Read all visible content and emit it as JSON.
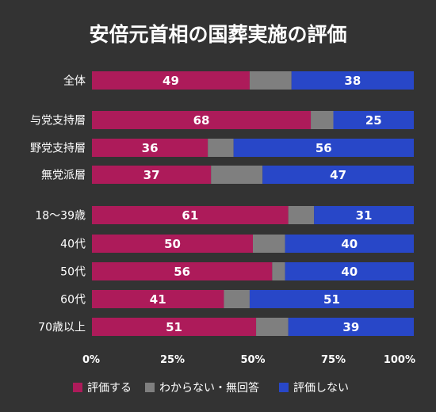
{
  "chart_data": {
    "type": "bar",
    "orientation": "horizontal",
    "stacked": true,
    "normalized_100": true,
    "title": "安倍元首相の国葬実施の評価",
    "categories": [
      "全体",
      "与党支持層",
      "野党支持層",
      "無党派層",
      "18〜39歳",
      "40代",
      "50代",
      "60代",
      "70歳以上"
    ],
    "groups": [
      [
        "全体"
      ],
      [
        "与党支持層",
        "野党支持層",
        "無党派層"
      ],
      [
        "18〜39歳",
        "40代",
        "50代",
        "60代",
        "70歳以上"
      ]
    ],
    "series": [
      {
        "name": "評価する",
        "color": "#ad1b5a",
        "values": [
          49,
          68,
          36,
          37,
          61,
          50,
          56,
          41,
          51
        ]
      },
      {
        "name": "わからない・無回答",
        "color": "#7f7f7f",
        "values": [
          13,
          7,
          8,
          16,
          8,
          10,
          4,
          8,
          10
        ]
      },
      {
        "name": "評価しない",
        "color": "#2847c8",
        "values": [
          38,
          25,
          56,
          47,
          31,
          40,
          40,
          51,
          39
        ]
      }
    ],
    "data_labels": [
      [
        "49",
        "38"
      ],
      [
        "68",
        "25"
      ],
      [
        "36",
        "56"
      ],
      [
        "37",
        "47"
      ],
      [
        "61",
        "31"
      ],
      [
        "50",
        "40"
      ],
      [
        "56",
        "40"
      ],
      [
        "41",
        "51"
      ],
      [
        "51",
        "39"
      ]
    ],
    "labeled_series": [
      0,
      2
    ],
    "xlim": [
      0,
      100
    ],
    "xticks": [
      "0%",
      "25%",
      "50%",
      "75%",
      "100%"
    ],
    "legend_position": "bottom",
    "grid": false
  }
}
